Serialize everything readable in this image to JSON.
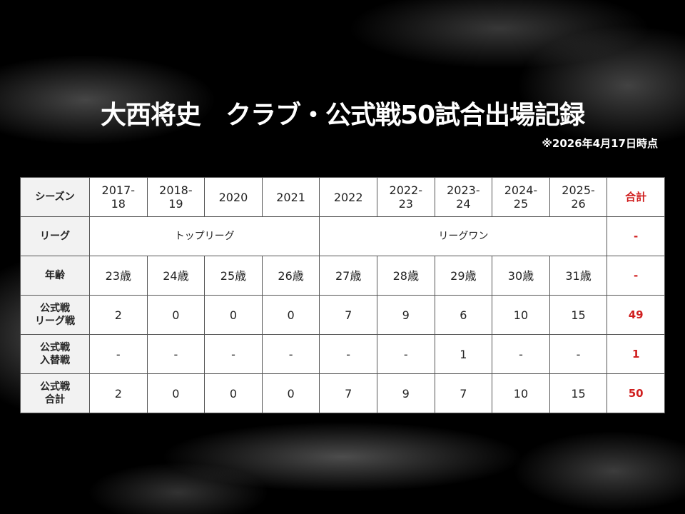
{
  "title": "大西将史　クラブ・公式戦50試合出場記録",
  "note": "※2026年4月17日時点",
  "colors": {
    "total": "#d01e1e",
    "header_bg": "#f2f2f2"
  },
  "table": {
    "season_label": "シーズン",
    "seasons": [
      "2017-\n18",
      "2018-\n19",
      "2020",
      "2021",
      "2022",
      "2022-\n23",
      "2023-\n24",
      "2024-\n25",
      "2025-\n26"
    ],
    "total_label": "合計",
    "league_label": "リーグ",
    "leagues": [
      {
        "name": "トップリーグ",
        "span": 4
      },
      {
        "name": "リーグワン",
        "span": 5
      }
    ],
    "league_total": "-",
    "age_label": "年齢",
    "ages": [
      "23歳",
      "24歳",
      "25歳",
      "26歳",
      "27歳",
      "28歳",
      "29歳",
      "30歳",
      "31歳"
    ],
    "age_total": "-",
    "rows": [
      {
        "label": "公式戦\nリーグ戦",
        "values": [
          "2",
          "0",
          "0",
          "0",
          "7",
          "9",
          "6",
          "10",
          "15"
        ],
        "total": "49"
      },
      {
        "label": "公式戦\n入替戦",
        "values": [
          "-",
          "-",
          "-",
          "-",
          "-",
          "-",
          "1",
          "-",
          "-"
        ],
        "total": "1"
      },
      {
        "label": "公式戦\n合計",
        "values": [
          "2",
          "0",
          "0",
          "0",
          "7",
          "9",
          "7",
          "10",
          "15"
        ],
        "total": "50"
      }
    ]
  }
}
